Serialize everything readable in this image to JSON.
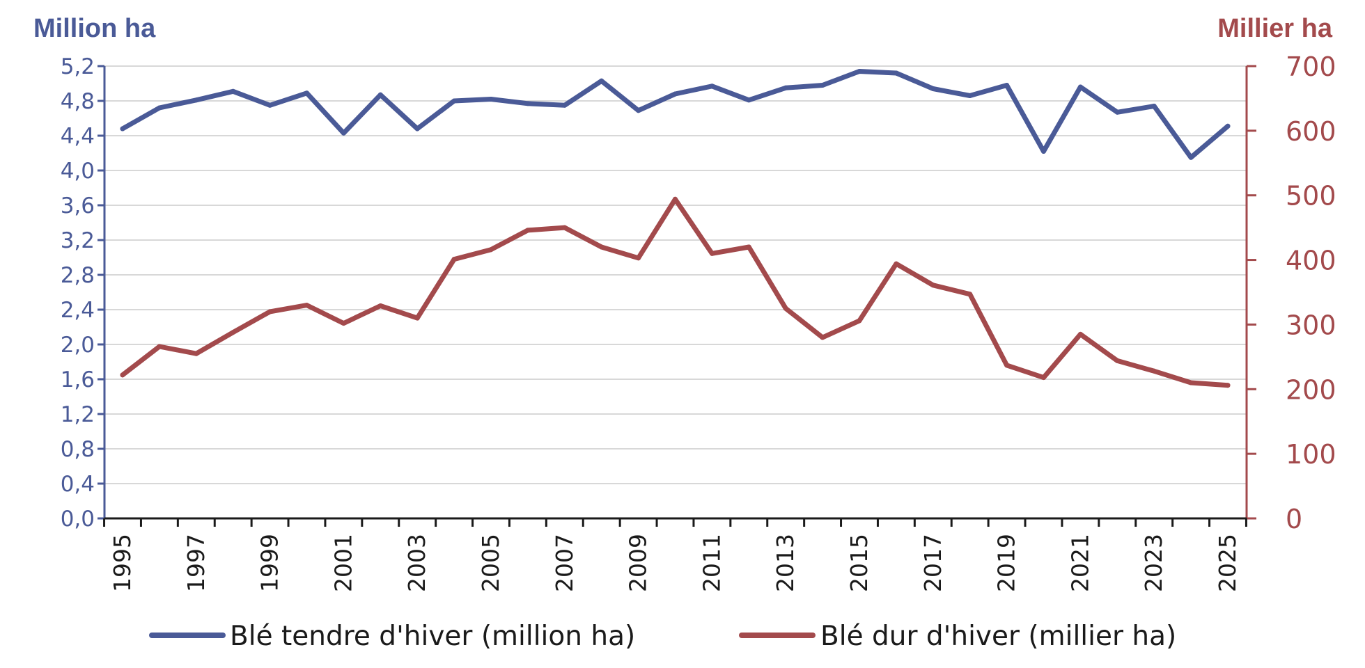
{
  "chart_data": {
    "type": "line",
    "title": "",
    "y_left_title": "Million ha",
    "y_right_title": "Millier ha",
    "x": [
      1995,
      1996,
      1997,
      1998,
      1999,
      2000,
      2001,
      2002,
      2003,
      2004,
      2005,
      2006,
      2007,
      2008,
      2009,
      2010,
      2011,
      2012,
      2013,
      2014,
      2015,
      2016,
      2017,
      2018,
      2019,
      2020,
      2021,
      2022,
      2023,
      2024,
      2025
    ],
    "x_tick_labels": [
      "1995",
      "1997",
      "1999",
      "2001",
      "2003",
      "2005",
      "2007",
      "2009",
      "2011",
      "2013",
      "2015",
      "2017",
      "2019",
      "2021",
      "2023",
      "2025"
    ],
    "y_left_ticks": [
      "0,0",
      "0,4",
      "0,8",
      "1,2",
      "1,6",
      "2,0",
      "2,4",
      "2,8",
      "3,2",
      "3,6",
      "4,0",
      "4,4",
      "4,8",
      "5,2"
    ],
    "y_right_ticks": [
      "0",
      "100",
      "200",
      "300",
      "400",
      "500",
      "600",
      "700"
    ],
    "ylim_left": [
      0,
      5.2
    ],
    "ylim_right": [
      0,
      700
    ],
    "grid": true,
    "legend_position": "bottom",
    "series": [
      {
        "name": "Blé tendre d'hiver (million ha)",
        "axis": "left",
        "color": "#4a5a97",
        "values": [
          4.48,
          4.72,
          4.81,
          4.91,
          4.75,
          4.89,
          4.43,
          4.87,
          4.48,
          4.8,
          4.82,
          4.77,
          4.75,
          5.03,
          4.69,
          4.88,
          4.97,
          4.81,
          4.95,
          4.98,
          5.14,
          5.12,
          4.94,
          4.86,
          4.98,
          4.22,
          4.96,
          4.67,
          4.74,
          4.15,
          4.51
        ]
      },
      {
        "name": "Blé dur d'hiver (millier ha)",
        "axis": "right",
        "color": "#a34a4c",
        "values": [
          222,
          266,
          255,
          288,
          320,
          330,
          302,
          329,
          310,
          401,
          416,
          446,
          450,
          420,
          403,
          494,
          410,
          420,
          325,
          280,
          306,
          394,
          361,
          347,
          237,
          218,
          285,
          244,
          228,
          210,
          206
        ]
      }
    ]
  }
}
